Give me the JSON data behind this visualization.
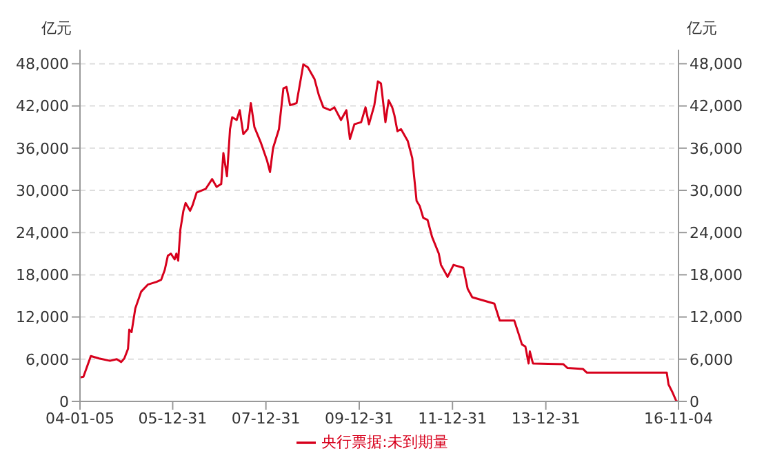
{
  "chart_data": {
    "type": "line",
    "ylabel": "亿元",
    "y2label": "亿元",
    "x": [
      "2004-01-05",
      "2004-02-01",
      "2004-03-30",
      "2004-06-03",
      "2004-08-27",
      "2004-10-19",
      "2004-11-23",
      "2004-12-17",
      "2005-01-15",
      "2005-01-25",
      "2005-02-12",
      "2005-03-13",
      "2005-04-28",
      "2005-06-19",
      "2005-08-27",
      "2005-10-02",
      "2005-10-30",
      "2005-11-23",
      "2005-12-17",
      "2006-01-15",
      "2006-01-29",
      "2006-02-12",
      "2006-03-01",
      "2006-03-25",
      "2006-04-11",
      "2006-05-16",
      "2006-06-03",
      "2006-07-07",
      "2006-09-15",
      "2006-11-05",
      "2006-12-10",
      "2007-01-15",
      "2007-02-01",
      "2007-03-01",
      "2007-03-25",
      "2007-04-11",
      "2007-05-16",
      "2007-06-09",
      "2007-07-07",
      "2007-08-10",
      "2007-09-04",
      "2007-10-02",
      "2007-11-23",
      "2008-01-08",
      "2008-02-01",
      "2008-02-25",
      "2008-04-11",
      "2008-05-16",
      "2008-06-09",
      "2008-07-07",
      "2008-08-27",
      "2008-10-19",
      "2008-11-23",
      "2009-01-15",
      "2009-02-18",
      "2009-03-25",
      "2009-05-16",
      "2009-06-19",
      "2009-08-10",
      "2009-09-21",
      "2009-10-19",
      "2009-11-23",
      "2010-01-15",
      "2010-02-18",
      "2010-03-17",
      "2010-04-28",
      "2010-05-26",
      "2010-06-19",
      "2010-06-30",
      "2010-07-24",
      "2010-08-18",
      "2010-09-15",
      "2010-10-02",
      "2010-10-26",
      "2010-11-23",
      "2011-01-15",
      "2011-02-19",
      "2011-03-25",
      "2011-04-18",
      "2011-05-16",
      "2011-06-19",
      "2011-07-24",
      "2011-09-15",
      "2011-10-02",
      "2011-11-23",
      "2012-01-08",
      "2012-03-25",
      "2012-04-28",
      "2012-06-03",
      "2012-11-23",
      "2013-01-04",
      "2013-04-28",
      "2013-06-03",
      "2013-06-27",
      "2013-07-24",
      "2013-08-18",
      "2013-08-28",
      "2013-09-21",
      "2014-05-16",
      "2014-06-19",
      "2014-10-19",
      "2014-11-16",
      "2016-08-04",
      "2016-08-18",
      "2016-09-15",
      "2016-10-19",
      "2016-11-04"
    ],
    "series": [
      {
        "name": "央行票据:未到期量",
        "color": "#d7001c",
        "values": [
          3400,
          3500,
          6450,
          6100,
          5770,
          6000,
          5600,
          6100,
          7470,
          10200,
          9850,
          13200,
          15600,
          16600,
          17000,
          17300,
          18700,
          20700,
          21000,
          20200,
          21000,
          20000,
          24400,
          27100,
          28200,
          27100,
          27800,
          29700,
          30200,
          31600,
          30500,
          30900,
          35300,
          32000,
          38700,
          40400,
          40000,
          41400,
          38000,
          38700,
          42400,
          39000,
          36700,
          34300,
          32600,
          36000,
          38700,
          44500,
          44700,
          42100,
          42400,
          47900,
          47500,
          45800,
          43500,
          41800,
          41400,
          41800,
          40000,
          41400,
          37300,
          39400,
          39700,
          41800,
          39400,
          42100,
          45500,
          45200,
          43500,
          39700,
          42800,
          41800,
          40700,
          38400,
          38700,
          37000,
          34600,
          28500,
          27800,
          26100,
          25800,
          23400,
          21000,
          19400,
          17700,
          19400,
          19000,
          16000,
          14800,
          13900,
          11500,
          11500,
          9500,
          8100,
          7800,
          5400,
          7100,
          5400,
          5300,
          4750,
          4600,
          4100,
          4100,
          2400,
          1400,
          0,
          0
        ]
      }
    ],
    "xlim": [
      "2004-01-05",
      "2016-11-04"
    ],
    "xticks": [
      {
        "value": "2004-01-05",
        "label": "04-01-05"
      },
      {
        "value": "2005-12-31",
        "label": "05-12-31"
      },
      {
        "value": "2007-12-31",
        "label": "07-12-31"
      },
      {
        "value": "2009-12-31",
        "label": "09-12-31"
      },
      {
        "value": "2011-12-31",
        "label": "11-12-31"
      },
      {
        "value": "2013-12-31",
        "label": "13-12-31"
      },
      {
        "value": "2016-11-04",
        "label": "16-11-04"
      }
    ],
    "ylim": [
      0,
      50000
    ],
    "yticks": [
      0,
      {
        "value": 6000,
        "label": "6,000"
      },
      {
        "value": 12000,
        "label": "12,000"
      },
      {
        "value": 18000,
        "label": "18,000"
      },
      {
        "value": 24000,
        "label": "24,000"
      },
      {
        "value": 30000,
        "label": "30,000"
      },
      {
        "value": 36000,
        "label": "36,000"
      },
      {
        "value": 42000,
        "label": "42,000"
      },
      {
        "value": 48000,
        "label": "48,000"
      }
    ],
    "y2lim": [
      0,
      50000
    ],
    "y2ticks": [
      0,
      {
        "value": 6000,
        "label": "6,000"
      },
      {
        "value": 12000,
        "label": "12,000"
      },
      {
        "value": 18000,
        "label": "18,000"
      },
      {
        "value": 24000,
        "label": "24,000"
      },
      {
        "value": 30000,
        "label": "30,000"
      },
      {
        "value": 36000,
        "label": "36,000"
      },
      {
        "value": 42000,
        "label": "42,000"
      },
      {
        "value": 48000,
        "label": "48,000"
      }
    ],
    "grid": "y",
    "legend": "bottom",
    "marker": "none",
    "line_style": "solid"
  }
}
